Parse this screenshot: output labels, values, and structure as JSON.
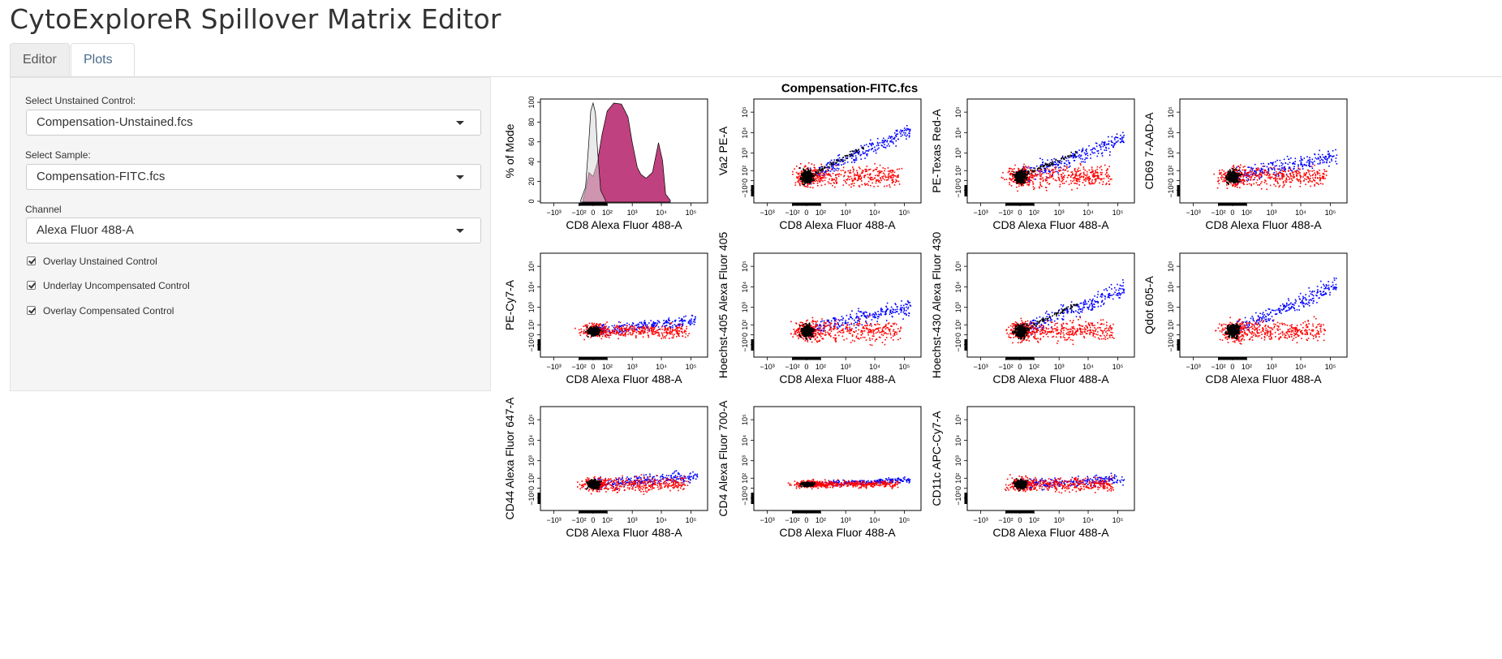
{
  "app": {
    "title": "CytoExploreR Spillover Matrix Editor"
  },
  "tabs": [
    {
      "label": "Editor",
      "active": true
    },
    {
      "label": "Plots",
      "active": false
    }
  ],
  "sidebar": {
    "unstained": {
      "label": "Select Unstained Control:",
      "value": "Compensation-Unstained.fcs"
    },
    "sample": {
      "label": "Select Sample:",
      "value": "Compensation-FITC.fcs"
    },
    "channel": {
      "label": "Channel",
      "value": "Alexa Fluor 488-A"
    },
    "checkboxes": [
      {
        "label": "Overlay Unstained Control",
        "checked": true
      },
      {
        "label": "Underlay Uncompensated Control",
        "checked": true
      },
      {
        "label": "Overlay Compensated Control",
        "checked": true
      }
    ]
  },
  "colors": {
    "compensated": "#ff0000",
    "uncompensated": "#0000ff",
    "unstained": "#000000",
    "histogram_fill": "#c0417f",
    "unstained_histogram_fill": "#d9d9d9"
  },
  "chart_data": {
    "title": "Compensation-FITC.fcs",
    "type": "scatter",
    "x_label": "CD8 Alexa Fluor 488-A",
    "x_scale": "biexponential",
    "x_range": [
      -2000,
      250000
    ],
    "x_ticks": [
      "−10³",
      "−10²",
      "0",
      "10²",
      "10³",
      "10⁴",
      "10⁵"
    ],
    "y_ticks": [
      "−10²",
      "0",
      "10²",
      "10³",
      "10⁴",
      "10⁵"
    ],
    "legend": "none",
    "panels": [
      {
        "type": "histogram",
        "ylabel": "% of Mode",
        "ylim": [
          0,
          100
        ],
        "y_ticks": [
          "0",
          "20",
          "40",
          "60",
          "80",
          "100"
        ],
        "series": [
          {
            "name": "Compensation-FITC.fcs",
            "color": "#c0417f",
            "x": [
              -60,
              -40,
              -20,
              0,
              20,
              50,
              100,
              200,
              400,
              700,
              1000,
              1500,
              2000,
              3000,
              5000,
              8000,
              11000,
              14000,
              20000
            ],
            "y": [
              3,
              12,
              30,
              26,
              40,
              68,
              92,
              100,
              99,
              86,
              60,
              35,
              28,
              24,
              30,
              60,
              42,
              8,
              2
            ]
          },
          {
            "name": "Compensation-Unstained.fcs",
            "color": "#d9d9d9",
            "x": [
              -80,
              -40,
              -20,
              -10,
              0,
              10,
              20,
              40,
              80
            ],
            "y": [
              2,
              15,
              60,
              92,
              100,
              90,
              55,
              12,
              2
            ]
          }
        ]
      },
      {
        "type": "scatter",
        "ylabel": "Va2 PE-A",
        "slope": 0.22,
        "spread": "wide",
        "trail": true
      },
      {
        "type": "scatter",
        "ylabel": "PE-Texas Red-A",
        "slope": 0.18,
        "spread": "wide",
        "trail": true
      },
      {
        "type": "scatter",
        "ylabel": "CD69 7-AAD-A",
        "slope": 0.1,
        "spread": "wide",
        "trail": false
      },
      {
        "type": "scatter",
        "ylabel": "PE-Cy7-A",
        "slope": 0.05,
        "spread": "flat",
        "trail": false
      },
      {
        "type": "scatter",
        "ylabel": "Hoechst-405 Alexa Fluor 405",
        "slope": 0.12,
        "spread": "wide",
        "trail": false
      },
      {
        "type": "scatter",
        "ylabel": "Hoechst-430 Alexa Fluor 430",
        "slope": 0.2,
        "spread": "wide",
        "trail": true
      },
      {
        "type": "scatter",
        "ylabel": "Qdot 605-A",
        "slope": 0.22,
        "spread": "wide",
        "trail": false
      },
      {
        "type": "scatter",
        "ylabel": "CD44 Alexa Fluor 647-A",
        "slope": 0.04,
        "spread": "flat",
        "trail": false
      },
      {
        "type": "scatter",
        "ylabel": "CD4 Alexa Fluor 700-A",
        "slope": 0.02,
        "spread": "thin",
        "trail": false
      },
      {
        "type": "scatter",
        "ylabel": "CD11c APC-Cy7-A",
        "slope": 0.02,
        "spread": "flat",
        "trail": false
      }
    ]
  }
}
